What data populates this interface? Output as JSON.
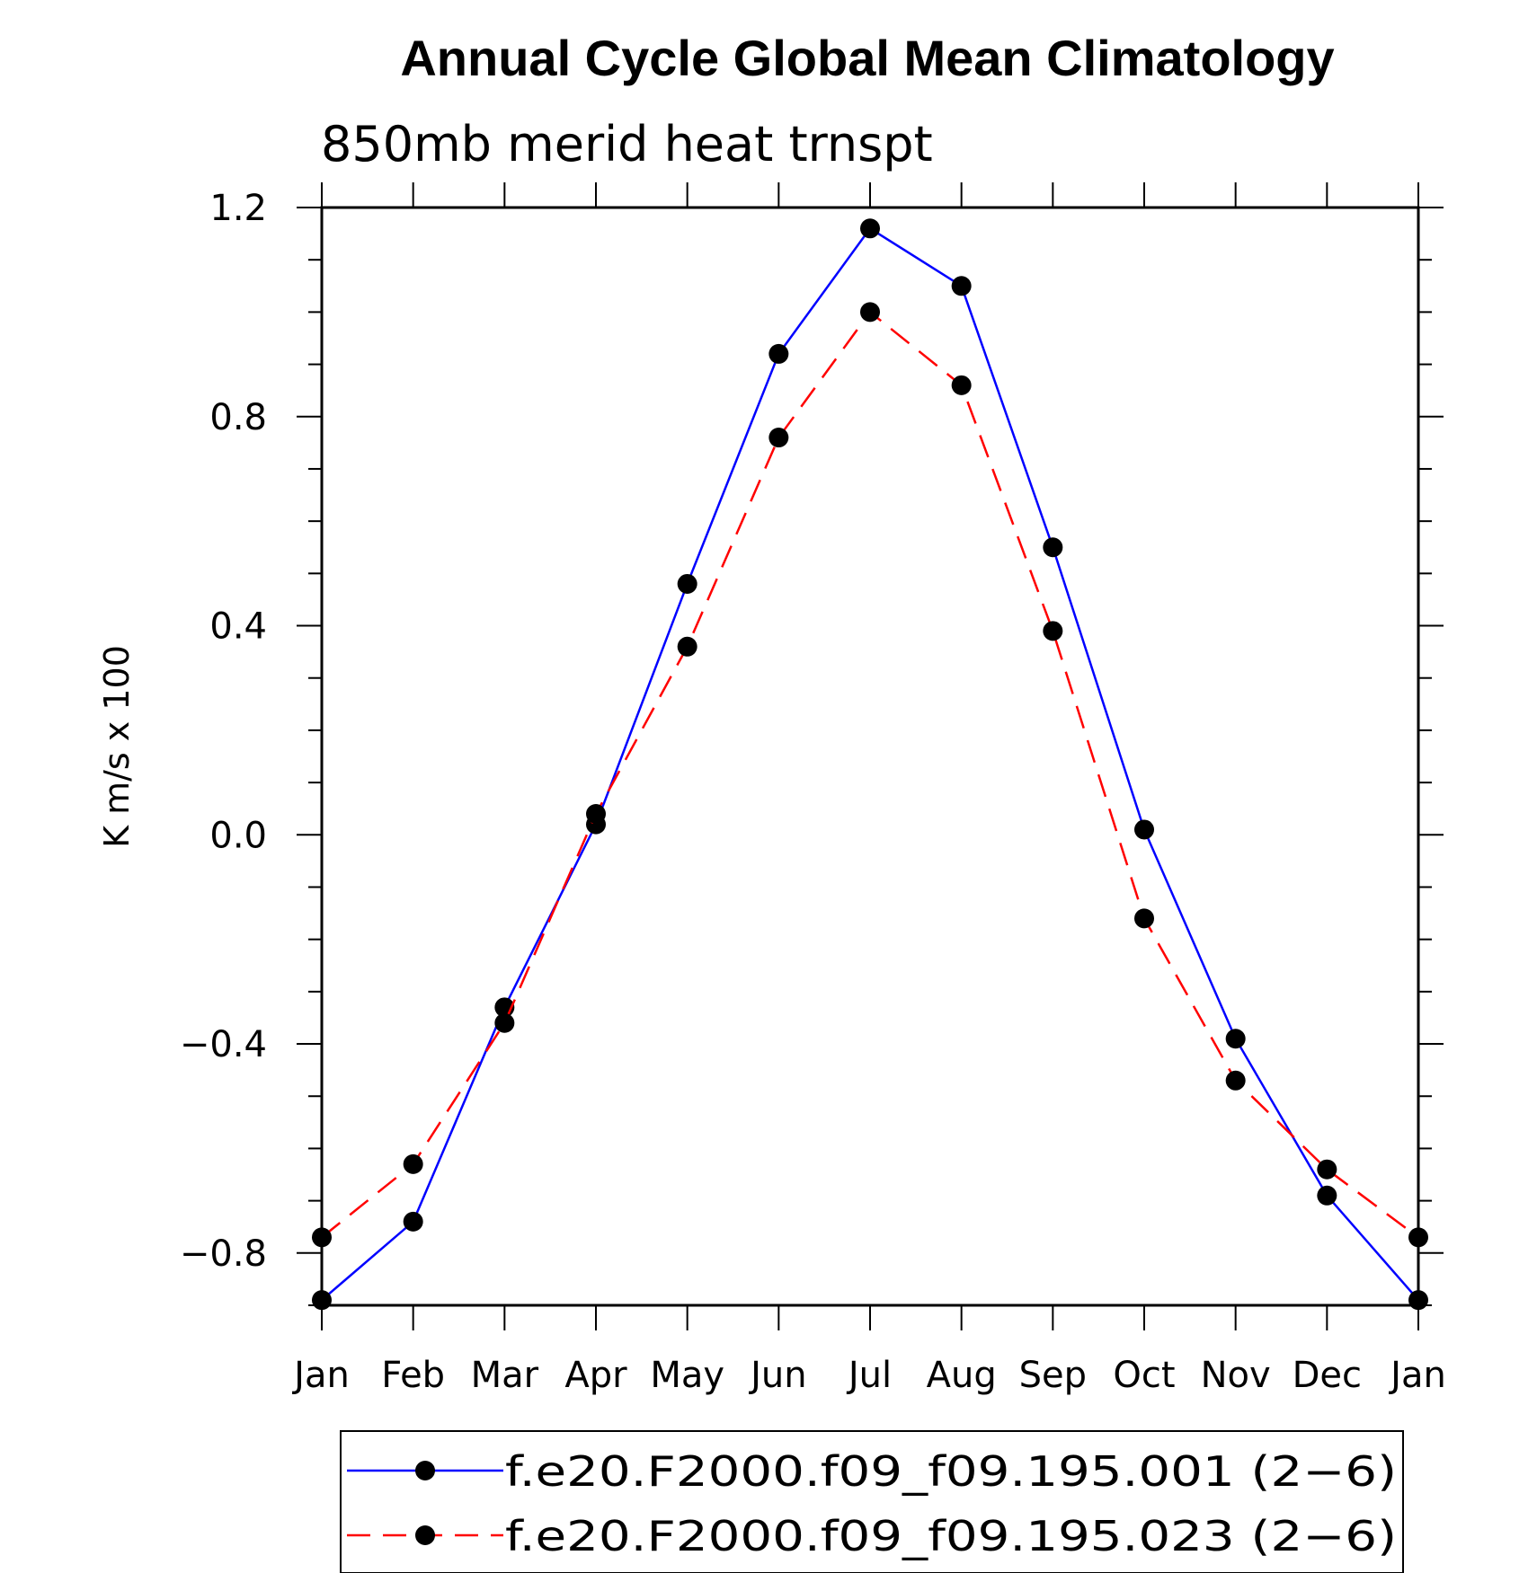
{
  "chart_data": {
    "type": "line",
    "title": "Annual Cycle Global Mean Climatology",
    "subtitle": "850mb merid heat trnspt",
    "xlabel": "",
    "ylabel": "K m/s x 100",
    "categories": [
      "Jan",
      "Feb",
      "Mar",
      "Apr",
      "May",
      "Jun",
      "Jul",
      "Aug",
      "Sep",
      "Oct",
      "Nov",
      "Dec",
      "Jan"
    ],
    "ylim": [
      -0.9,
      1.2
    ],
    "yticks": [
      -0.8,
      -0.4,
      0.0,
      0.4,
      0.8,
      1.2
    ],
    "ytick_labels": [
      "−0.8",
      "−0.4",
      "0.0",
      "0.4",
      "0.8",
      "1.2"
    ],
    "grid": false,
    "legend_position": "bottom",
    "series": [
      {
        "name": "f.e20.F2000.f09_f09.195.001 (2−6)",
        "color": "#0000ff",
        "line_style": "solid",
        "marker": "filled-circle",
        "values": [
          -0.89,
          -0.74,
          -0.33,
          0.02,
          0.48,
          0.92,
          1.16,
          1.05,
          0.55,
          0.01,
          -0.39,
          -0.69,
          -0.89
        ]
      },
      {
        "name": "f.e20.F2000.f09_f09.195.023 (2−6)",
        "color": "#ff0000",
        "line_style": "dashed",
        "marker": "filled-circle",
        "values": [
          -0.77,
          -0.63,
          -0.36,
          0.04,
          0.36,
          0.76,
          1.0,
          0.86,
          0.39,
          -0.16,
          -0.47,
          -0.64,
          -0.77
        ]
      }
    ]
  }
}
